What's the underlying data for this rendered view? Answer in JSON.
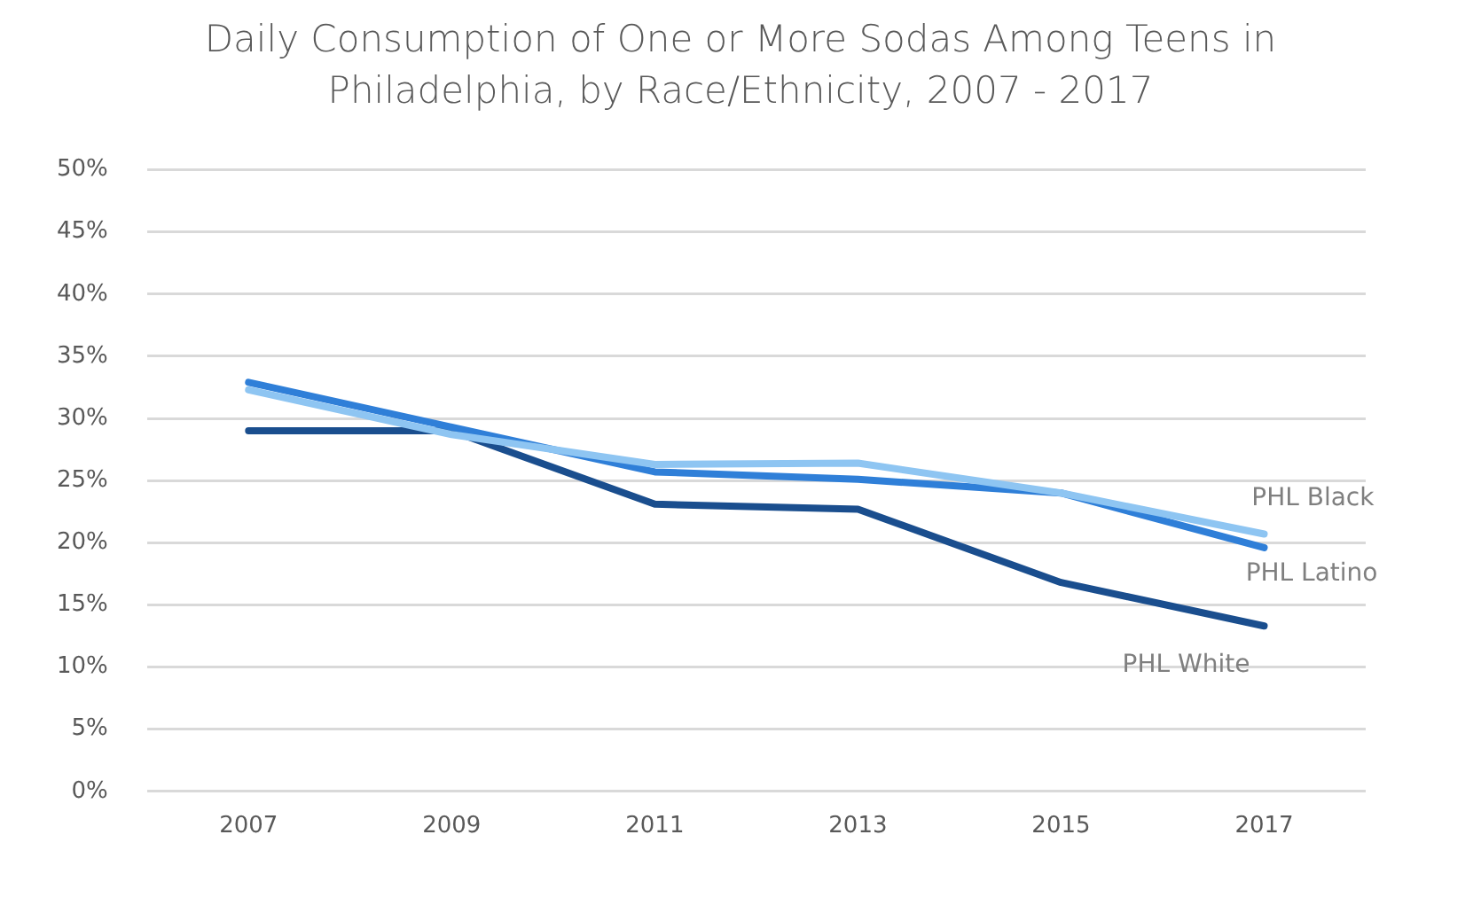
{
  "chart_data": {
    "type": "line",
    "title": "Daily Consumption of One or More Sodas Among Teens in Philadelphia, by Race/Ethnicity, 2007 - 2017",
    "categories": [
      "2007",
      "2009",
      "2011",
      "2013",
      "2015",
      "2017"
    ],
    "series": [
      {
        "name": "PHL Black",
        "color": "#8ec5f2",
        "values": [
          32.3,
          28.7,
          26.3,
          26.4,
          24,
          20.7
        ]
      },
      {
        "name": "PHL Latino",
        "color": "#2f7fd8",
        "values": [
          32.9,
          29.3,
          25.7,
          25.1,
          24,
          19.6
        ]
      },
      {
        "name": "PHL White",
        "color": "#1a4e8e",
        "values": [
          29,
          29,
          23.1,
          22.7,
          16.8,
          13.3
        ]
      }
    ],
    "ylim": [
      0,
      50
    ],
    "yticks": [
      {
        "value": 0,
        "label": "0%"
      },
      {
        "value": 5,
        "label": "5%"
      },
      {
        "value": 10,
        "label": "10%"
      },
      {
        "value": 15,
        "label": "15%"
      },
      {
        "value": 20,
        "label": "20%"
      },
      {
        "value": 25,
        "label": "25%"
      },
      {
        "value": 30,
        "label": "30%"
      },
      {
        "value": 35,
        "label": "35%"
      },
      {
        "value": 40,
        "label": "40%"
      },
      {
        "value": 45,
        "label": "45%"
      },
      {
        "value": 50,
        "label": "50%"
      }
    ],
    "grid": "y",
    "legend": false,
    "marker": "none",
    "line_style": "solid"
  }
}
